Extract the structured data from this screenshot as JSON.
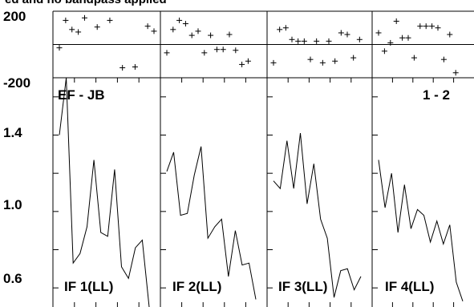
{
  "title": "ed and no bandpass applied",
  "baseline_label": "EF - JB",
  "pol_label": "1 - 2",
  "phase_axis": {
    "ticks": [
      "200",
      "-200"
    ],
    "ylim": [
      -200,
      200
    ]
  },
  "amp_axis": {
    "ticks": [
      "1.4",
      "1.0",
      "0.6"
    ],
    "ylim": [
      0.5,
      1.7
    ]
  },
  "chart_data": [
    {
      "type": "scatter",
      "title": "IF 1(LL)",
      "ylim": [
        -200,
        200
      ],
      "series": [
        {
          "values": [
            [
              0,
              -20
            ],
            [
              1,
              145
            ],
            [
              2,
              90
            ],
            [
              3,
              75
            ],
            [
              4,
              160
            ],
            [
              6,
              105
            ],
            [
              8,
              145
            ],
            [
              10,
              -140
            ],
            [
              12,
              -135
            ],
            [
              14,
              110
            ],
            [
              15,
              80
            ]
          ]
        }
      ]
    },
    {
      "type": "scatter",
      "title": "IF 2(LL)",
      "ylim": [
        -200,
        200
      ],
      "series": [
        {
          "values": [
            [
              0,
              -50
            ],
            [
              1,
              90
            ],
            [
              2,
              145
            ],
            [
              3,
              125
            ],
            [
              4,
              55
            ],
            [
              5,
              80
            ],
            [
              6,
              -50
            ],
            [
              7,
              55
            ],
            [
              8,
              -30
            ],
            [
              9,
              -30
            ],
            [
              10,
              60
            ],
            [
              11,
              -35
            ],
            [
              12,
              -120
            ],
            [
              13,
              -100
            ]
          ]
        }
      ]
    },
    {
      "type": "scatter",
      "title": "IF 3(LL)",
      "ylim": [
        -200,
        200
      ],
      "series": [
        {
          "values": [
            [
              0,
              -110
            ],
            [
              1,
              90
            ],
            [
              2,
              100
            ],
            [
              3,
              30
            ],
            [
              4,
              20
            ],
            [
              5,
              20
            ],
            [
              6,
              -90
            ],
            [
              7,
              20
            ],
            [
              8,
              -110
            ],
            [
              9,
              20
            ],
            [
              10,
              -100
            ],
            [
              11,
              70
            ],
            [
              12,
              60
            ],
            [
              13,
              -80
            ],
            [
              14,
              30
            ]
          ]
        }
      ]
    },
    {
      "type": "scatter",
      "title": "IF 4(LL)",
      "ylim": [
        -200,
        200
      ],
      "series": [
        {
          "values": [
            [
              0,
              70
            ],
            [
              1,
              -40
            ],
            [
              2,
              10
            ],
            [
              3,
              140
            ],
            [
              4,
              40
            ],
            [
              5,
              40
            ],
            [
              6,
              -80
            ],
            [
              7,
              110
            ],
            [
              8,
              110
            ],
            [
              9,
              110
            ],
            [
              10,
              100
            ],
            [
              11,
              -90
            ],
            [
              12,
              60
            ],
            [
              13,
              -170
            ]
          ]
        }
      ]
    },
    {
      "type": "line",
      "title": "IF 1(LL)",
      "ylim": [
        0.5,
        1.7
      ],
      "series": [
        {
          "values": [
            [
              0,
              1.4
            ],
            [
              1,
              1.7
            ],
            [
              2,
              0.73
            ],
            [
              3,
              0.78
            ],
            [
              4,
              0.92
            ],
            [
              5,
              1.27
            ],
            [
              6,
              0.89
            ],
            [
              7,
              0.87
            ],
            [
              8,
              1.22
            ],
            [
              9,
              0.71
            ],
            [
              10,
              0.65
            ],
            [
              11,
              0.81
            ],
            [
              12,
              0.85
            ],
            [
              13,
              0.5
            ]
          ]
        }
      ]
    },
    {
      "type": "line",
      "title": "IF 2(LL)",
      "ylim": [
        0.5,
        1.7
      ],
      "series": [
        {
          "values": [
            [
              0,
              1.21
            ],
            [
              1,
              1.31
            ],
            [
              2,
              0.98
            ],
            [
              3,
              0.99
            ],
            [
              4,
              1.19
            ],
            [
              5,
              1.34
            ],
            [
              6,
              0.86
            ],
            [
              7,
              0.92
            ],
            [
              8,
              0.96
            ],
            [
              9,
              0.66
            ],
            [
              10,
              0.9
            ],
            [
              11,
              0.72
            ],
            [
              12,
              0.73
            ],
            [
              13,
              0.54
            ]
          ]
        }
      ]
    },
    {
      "type": "line",
      "title": "IF 3(LL)",
      "ylim": [
        0.5,
        1.7
      ],
      "series": [
        {
          "values": [
            [
              0,
              1.16
            ],
            [
              1,
              1.12
            ],
            [
              2,
              1.37
            ],
            [
              3,
              1.12
            ],
            [
              4,
              1.41
            ],
            [
              5,
              1.04
            ],
            [
              6,
              1.25
            ],
            [
              7,
              0.96
            ],
            [
              8,
              0.86
            ],
            [
              9,
              0.55
            ],
            [
              10,
              0.69
            ],
            [
              11,
              0.7
            ],
            [
              12,
              0.59
            ],
            [
              13,
              0.66
            ]
          ]
        }
      ]
    },
    {
      "type": "line",
      "title": "IF 4(LL)",
      "ylim": [
        0.5,
        1.7
      ],
      "series": [
        {
          "values": [
            [
              0,
              1.27
            ],
            [
              1,
              1.02
            ],
            [
              2,
              1.2
            ],
            [
              3,
              0.89
            ],
            [
              4,
              1.14
            ],
            [
              5,
              0.91
            ],
            [
              6,
              1.01
            ],
            [
              7,
              0.98
            ],
            [
              8,
              0.84
            ],
            [
              9,
              0.95
            ],
            [
              10,
              0.83
            ],
            [
              11,
              0.93
            ],
            [
              12,
              0.63
            ],
            [
              13,
              0.53
            ]
          ]
        }
      ]
    }
  ]
}
